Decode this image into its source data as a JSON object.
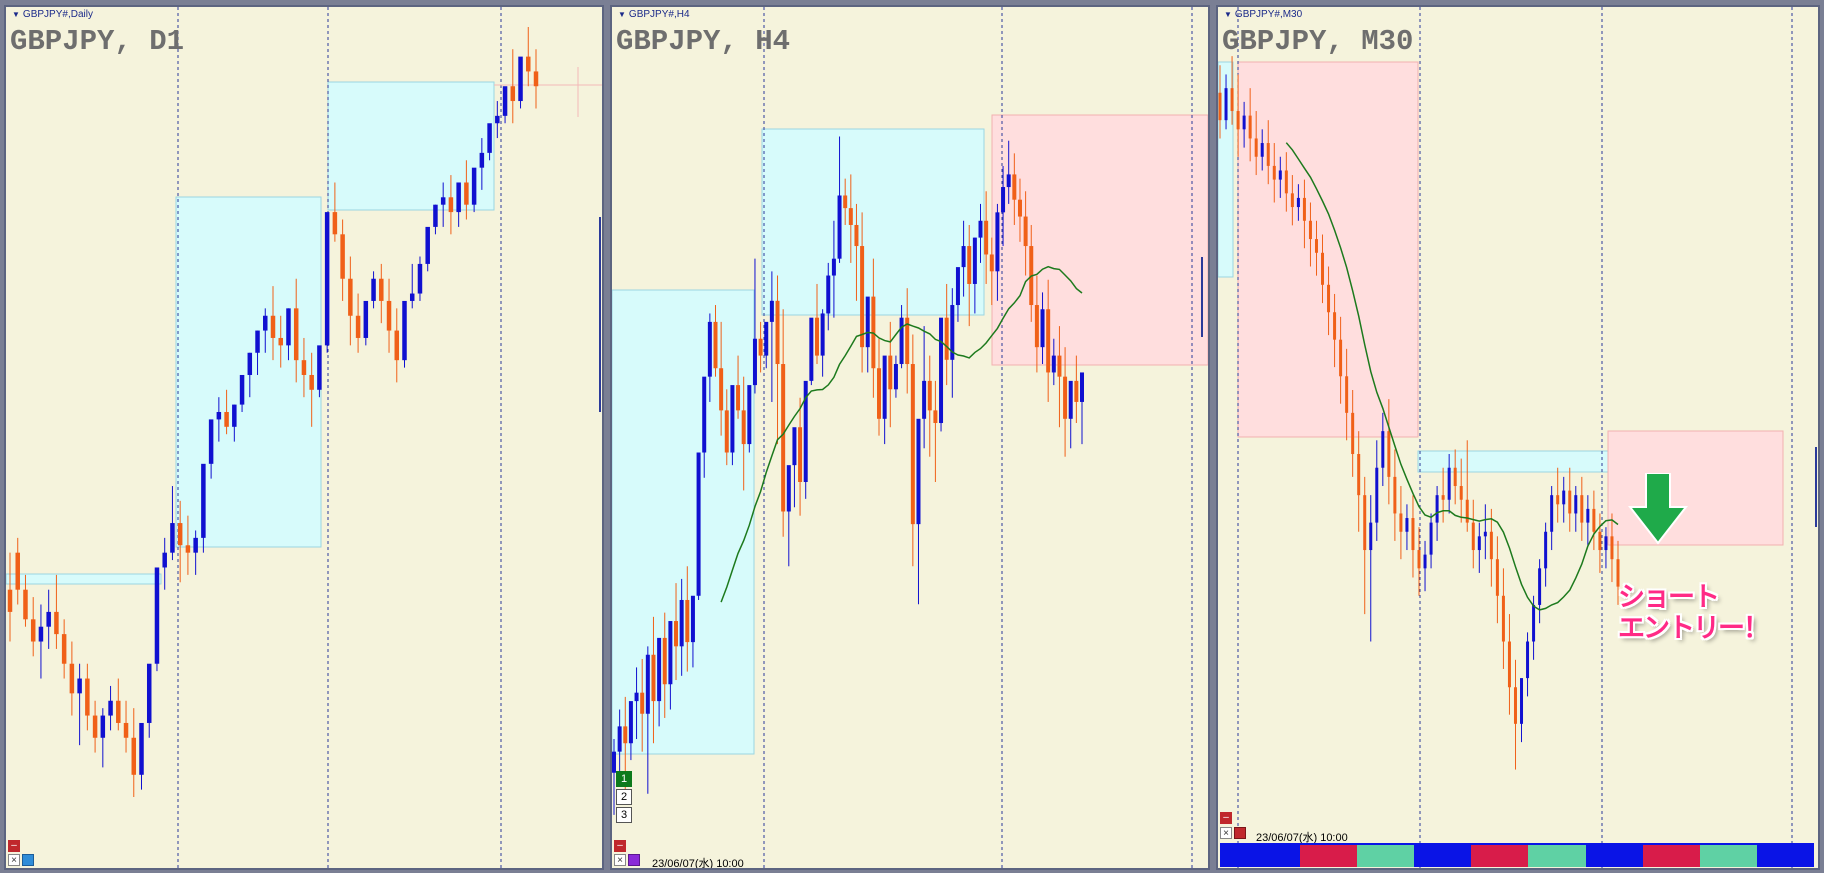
{
  "colors": {
    "background": "#f5f3dc",
    "bull": "#1010d0",
    "bear": "#f06018",
    "demand_zone": "#d7fbfb",
    "supply_zone": "#ffdede",
    "ma_line": "#1d7a1d",
    "entry_arrow": "#1faa4a",
    "entry_text": "#ff2a86",
    "bar_blue": "#0a14e6",
    "bar_red": "#d81c4a",
    "bar_teal": "#5fd1a4"
  },
  "panels": [
    {
      "id": "d1",
      "small_title": "GBPJPY#,Daily",
      "big_title": "GBPJPY, D1",
      "icon": "chart-menu-triangle"
    },
    {
      "id": "h4",
      "small_title": "GBPJPY#,H4",
      "big_title": "GBPJPY, H4",
      "icon": "chart-menu-triangle",
      "date_label": "23/06/07(水) 10:00",
      "pages": [
        "1",
        "2",
        "3"
      ],
      "active_page": "1"
    },
    {
      "id": "m30",
      "small_title": "GBPJPY#,M30",
      "big_title": "GBPJPY, M30",
      "icon": "chart-menu-triangle",
      "date_label": "23/06/07(水) 10:00",
      "entry_text_line1": "ショート",
      "entry_text_line2": "エントリー！",
      "strength_bar": [
        "blue",
        "blue",
        "red",
        "teal",
        "blue",
        "red",
        "teal",
        "blue",
        "red",
        "teal",
        "blue"
      ]
    }
  ],
  "controls": {
    "minimize_symbol": "–",
    "close_symbol": "×"
  },
  "price_series": {
    "d1": [
      [
        122.0,
        124.5,
        120.5,
        118.5
      ],
      [
        124.5,
        125.5,
        122.0,
        121.0
      ],
      [
        122.0,
        123.0,
        120.0,
        119.5
      ],
      [
        120.0,
        121.5,
        118.5,
        117.5
      ],
      [
        118.5,
        121.0,
        119.5,
        116.0
      ],
      [
        119.5,
        122.0,
        120.5,
        118.0
      ],
      [
        120.5,
        123.0,
        119.0,
        118.0
      ],
      [
        119.0,
        120.0,
        117.0,
        116.0
      ],
      [
        117.0,
        118.5,
        115.0,
        113.5
      ],
      [
        115.0,
        117.0,
        116.0,
        111.5
      ],
      [
        116.0,
        117.0,
        113.5,
        112.5
      ],
      [
        113.5,
        114.5,
        112.0,
        111.0
      ],
      [
        112.0,
        114.0,
        113.5,
        110.0
      ],
      [
        113.5,
        115.5,
        114.5,
        112.5
      ],
      [
        114.5,
        116.0,
        113.0,
        112.5
      ],
      [
        113.0,
        114.5,
        112.0,
        111.0
      ],
      [
        112.0,
        114.0,
        109.5,
        108.0
      ],
      [
        109.5,
        111.5,
        113.0,
        108.5
      ],
      [
        113.0,
        116.5,
        117.0,
        112.0
      ],
      [
        117.0,
        120.0,
        123.5,
        116.5
      ],
      [
        123.5,
        125.5,
        124.5,
        122.0
      ],
      [
        124.5,
        129.0,
        126.5,
        124.0
      ],
      [
        126.5,
        128.0,
        125.0,
        122.5
      ],
      [
        125.0,
        127.0,
        124.5,
        123.0
      ],
      [
        124.5,
        126.0,
        125.5,
        123.0
      ],
      [
        125.5,
        128.5,
        130.5,
        124.5
      ],
      [
        130.5,
        132.0,
        133.5,
        129.5
      ],
      [
        133.5,
        135.0,
        134.0,
        132.0
      ],
      [
        134.0,
        135.5,
        133.0,
        132.5
      ],
      [
        133.0,
        134.5,
        134.5,
        132.0
      ],
      [
        134.5,
        136.0,
        136.5,
        134.0
      ],
      [
        136.5,
        138.0,
        138.0,
        135.0
      ],
      [
        138.0,
        139.5,
        139.5,
        136.5
      ],
      [
        139.5,
        141.0,
        140.5,
        138.0
      ],
      [
        140.5,
        142.5,
        139.0,
        137.5
      ],
      [
        139.0,
        140.5,
        138.5,
        137.0
      ],
      [
        138.5,
        141.0,
        141.0,
        137.5
      ],
      [
        141.0,
        143.0,
        137.5,
        136.0
      ],
      [
        137.5,
        139.0,
        136.5,
        135.0
      ],
      [
        136.5,
        138.0,
        135.5,
        133.0
      ],
      [
        135.5,
        137.5,
        138.5,
        135.0
      ],
      [
        138.5,
        142.0,
        147.5,
        138.0
      ],
      [
        147.5,
        149.5,
        146.0,
        145.5
      ],
      [
        146.0,
        147.0,
        143.0,
        141.5
      ],
      [
        143.0,
        144.5,
        140.5,
        138.5
      ],
      [
        140.5,
        142.0,
        139.0,
        138.0
      ],
      [
        139.0,
        141.0,
        141.5,
        138.5
      ],
      [
        141.5,
        143.5,
        143.0,
        141.0
      ],
      [
        143.0,
        144.0,
        141.5,
        140.0
      ],
      [
        141.5,
        143.0,
        139.5,
        138.0
      ],
      [
        139.5,
        141.0,
        137.5,
        136.0
      ],
      [
        137.5,
        139.0,
        141.5,
        137.0
      ],
      [
        141.5,
        144.0,
        142.0,
        141.0
      ],
      [
        142.0,
        144.5,
        144.0,
        141.5
      ],
      [
        144.0,
        146.0,
        146.5,
        143.5
      ],
      [
        146.5,
        148.0,
        148.0,
        146.0
      ],
      [
        148.0,
        149.5,
        148.5,
        146.5
      ],
      [
        148.5,
        150.0,
        147.5,
        146.0
      ],
      [
        147.5,
        148.5,
        149.5,
        146.5
      ],
      [
        149.5,
        151.0,
        148.0,
        147.0
      ],
      [
        148.0,
        149.5,
        150.5,
        147.5
      ],
      [
        150.5,
        152.5,
        151.5,
        149.0
      ],
      [
        151.5,
        153.0,
        153.5,
        151.0
      ],
      [
        153.5,
        155.0,
        154.0,
        152.5
      ],
      [
        154.0,
        155.5,
        156.0,
        153.5
      ],
      [
        156.0,
        158.5,
        155.0,
        153.5
      ],
      [
        155.0,
        157.0,
        158.0,
        154.5
      ],
      [
        158.0,
        160.0,
        157.0,
        156.0
      ],
      [
        157.0,
        158.5,
        156.0,
        154.5
      ]
    ],
    "h4": [
      [
        166.5,
        167.3,
        167.0,
        165.5
      ],
      [
        167.0,
        168.0,
        167.6,
        166.2
      ],
      [
        167.6,
        168.3,
        167.2,
        166.0
      ],
      [
        167.2,
        168.0,
        168.2,
        166.8
      ],
      [
        168.2,
        169.0,
        168.4,
        167.3
      ],
      [
        168.4,
        169.2,
        167.9,
        167.0
      ],
      [
        167.9,
        169.5,
        169.3,
        166.0
      ],
      [
        169.3,
        170.2,
        168.2,
        167.2
      ],
      [
        168.2,
        169.0,
        169.7,
        167.6
      ],
      [
        169.7,
        170.3,
        168.6,
        167.8
      ],
      [
        168.6,
        169.8,
        170.1,
        168.0
      ],
      [
        170.1,
        171.0,
        169.5,
        168.7
      ],
      [
        169.5,
        171.1,
        170.6,
        168.8
      ],
      [
        170.6,
        171.4,
        169.6,
        168.9
      ],
      [
        169.6,
        170.5,
        170.7,
        169.0
      ],
      [
        170.7,
        172.5,
        174.1,
        170.6
      ],
      [
        174.1,
        175.5,
        175.9,
        173.5
      ],
      [
        175.9,
        177.4,
        177.2,
        175.3
      ],
      [
        177.2,
        177.6,
        176.1,
        175.9
      ],
      [
        176.1,
        177.2,
        175.1,
        174.5
      ],
      [
        175.1,
        175.6,
        174.1,
        173.8
      ],
      [
        174.1,
        175.1,
        175.7,
        173.8
      ],
      [
        175.7,
        176.4,
        175.1,
        174.9
      ],
      [
        175.1,
        175.9,
        174.3,
        173.2
      ],
      [
        174.3,
        174.7,
        175.7,
        174.1
      ],
      [
        175.7,
        178.7,
        176.8,
        175.5
      ],
      [
        176.8,
        177.2,
        176.4,
        176.0
      ],
      [
        176.4,
        176.9,
        177.2,
        176.1
      ],
      [
        177.2,
        178.4,
        177.7,
        175.3
      ],
      [
        177.7,
        178.3,
        176.2,
        174.3
      ],
      [
        176.2,
        177.5,
        172.7,
        172.1
      ],
      [
        172.7,
        173.2,
        173.8,
        171.4
      ],
      [
        173.8,
        174.2,
        174.7,
        172.8
      ],
      [
        174.7,
        175.4,
        173.4,
        172.6
      ],
      [
        173.4,
        174.2,
        175.8,
        173.0
      ],
      [
        175.8,
        176.4,
        177.3,
        175.7
      ],
      [
        177.3,
        178.1,
        176.4,
        176.2
      ],
      [
        176.4,
        177.5,
        177.4,
        175.9
      ],
      [
        177.4,
        178.6,
        178.3,
        177.0
      ],
      [
        178.3,
        179.6,
        178.7,
        177.3
      ],
      [
        178.7,
        181.6,
        180.2,
        178.6
      ],
      [
        180.2,
        180.6,
        179.9,
        179.5
      ],
      [
        179.9,
        180.7,
        179.5,
        178.6
      ],
      [
        179.5,
        180.0,
        179.0,
        177.7
      ],
      [
        179.0,
        179.8,
        176.6,
        176.0
      ],
      [
        176.6,
        177.2,
        177.8,
        176.0
      ],
      [
        177.8,
        178.7,
        176.1,
        175.4
      ],
      [
        176.1,
        176.8,
        174.9,
        174.5
      ],
      [
        174.9,
        175.7,
        176.4,
        174.3
      ],
      [
        176.4,
        177.2,
        175.6,
        174.7
      ],
      [
        175.6,
        176.4,
        176.2,
        175.4
      ],
      [
        176.2,
        177.6,
        177.3,
        176.1
      ],
      [
        177.3,
        178.0,
        176.2,
        175.5
      ],
      [
        176.2,
        176.9,
        172.4,
        171.4
      ],
      [
        172.4,
        174.0,
        174.9,
        170.5
      ],
      [
        174.9,
        177.1,
        175.8,
        174.2
      ],
      [
        175.8,
        176.4,
        175.1,
        174.0
      ],
      [
        175.1,
        175.8,
        174.8,
        173.4
      ],
      [
        174.8,
        176.2,
        177.3,
        174.6
      ],
      [
        177.3,
        178.1,
        176.3,
        175.7
      ],
      [
        176.3,
        178.0,
        177.6,
        175.4
      ],
      [
        177.6,
        178.2,
        178.5,
        177.2
      ],
      [
        178.5,
        179.6,
        179.0,
        177.8
      ],
      [
        179.0,
        179.5,
        178.1,
        177.1
      ],
      [
        178.1,
        179.2,
        179.2,
        177.4
      ],
      [
        179.2,
        180.0,
        179.6,
        178.6
      ],
      [
        179.6,
        180.3,
        178.8,
        178.1
      ],
      [
        178.8,
        179.2,
        178.4,
        177.6
      ],
      [
        178.4,
        180.0,
        179.8,
        177.7
      ],
      [
        179.8,
        180.9,
        180.4,
        179.0
      ],
      [
        180.4,
        181.5,
        180.7,
        180.0
      ],
      [
        180.7,
        181.2,
        180.1,
        179.5
      ],
      [
        180.1,
        180.6,
        179.7,
        179.1
      ],
      [
        179.7,
        180.3,
        179.0,
        178.3
      ],
      [
        179.0,
        179.5,
        177.6,
        177.2
      ],
      [
        177.6,
        178.3,
        176.6,
        176.0
      ],
      [
        176.6,
        177.9,
        177.5,
        176.2
      ],
      [
        177.5,
        178.2,
        176.0,
        175.3
      ],
      [
        176.0,
        176.8,
        176.4,
        175.7
      ],
      [
        176.4,
        177.1,
        175.9,
        174.7
      ],
      [
        175.9,
        176.6,
        174.9,
        174.0
      ],
      [
        174.9,
        175.5,
        175.8,
        174.2
      ],
      [
        175.8,
        176.4,
        175.3,
        174.8
      ],
      [
        175.3,
        176.0,
        176.0,
        174.3
      ]
    ],
    "m30": [
      [
        181.3,
        181.6,
        181.0,
        180.8
      ],
      [
        181.0,
        181.5,
        181.35,
        180.9
      ],
      [
        181.35,
        181.7,
        181.1,
        180.95
      ],
      [
        181.1,
        181.5,
        180.9,
        180.6
      ],
      [
        180.9,
        181.2,
        181.05,
        180.7
      ],
      [
        181.05,
        181.35,
        180.8,
        180.55
      ],
      [
        180.8,
        181.1,
        180.6,
        180.4
      ],
      [
        180.6,
        180.9,
        180.75,
        180.45
      ],
      [
        180.75,
        181.0,
        180.5,
        180.3
      ],
      [
        180.5,
        180.75,
        180.35,
        180.1
      ],
      [
        180.35,
        180.6,
        180.45,
        180.15
      ],
      [
        180.45,
        180.65,
        180.2,
        180.0
      ],
      [
        180.2,
        180.4,
        180.05,
        179.85
      ],
      [
        180.05,
        180.3,
        180.15,
        179.9
      ],
      [
        180.15,
        180.35,
        179.9,
        179.6
      ],
      [
        179.9,
        180.1,
        179.7,
        179.4
      ],
      [
        179.7,
        179.9,
        179.55,
        179.3
      ],
      [
        179.55,
        179.75,
        179.2,
        179.0
      ],
      [
        179.2,
        179.4,
        178.9,
        178.65
      ],
      [
        178.9,
        179.1,
        178.6,
        178.3
      ],
      [
        178.6,
        178.85,
        178.2,
        177.9
      ],
      [
        178.2,
        178.5,
        177.8,
        177.5
      ],
      [
        177.8,
        178.05,
        177.35,
        177.1
      ],
      [
        177.35,
        177.6,
        176.9,
        176.5
      ],
      [
        176.9,
        177.1,
        176.3,
        175.6
      ],
      [
        176.3,
        176.9,
        176.6,
        175.3
      ],
      [
        176.6,
        177.5,
        177.2,
        176.4
      ],
      [
        177.2,
        177.8,
        177.6,
        177.0
      ],
      [
        177.6,
        177.95,
        177.1,
        176.8
      ],
      [
        177.1,
        177.4,
        176.7,
        176.4
      ],
      [
        176.7,
        177.0,
        176.5,
        176.2
      ],
      [
        176.5,
        176.8,
        176.65,
        176.3
      ],
      [
        176.65,
        176.9,
        176.3,
        176.0
      ],
      [
        176.3,
        176.55,
        176.1,
        175.8
      ],
      [
        176.1,
        176.4,
        176.25,
        175.85
      ],
      [
        176.25,
        176.7,
        176.6,
        176.1
      ],
      [
        176.6,
        177.0,
        176.9,
        176.4
      ],
      [
        176.9,
        177.2,
        176.85,
        176.6
      ],
      [
        176.85,
        177.35,
        177.2,
        176.7
      ],
      [
        177.2,
        177.4,
        177.0,
        176.8
      ],
      [
        177.0,
        177.3,
        176.85,
        176.6
      ],
      [
        176.85,
        177.5,
        176.6,
        176.5
      ],
      [
        176.6,
        176.85,
        176.3,
        176.1
      ],
      [
        176.3,
        176.6,
        176.45,
        176.05
      ],
      [
        176.45,
        176.8,
        176.5,
        176.2
      ],
      [
        176.5,
        176.75,
        176.2,
        175.9
      ],
      [
        176.2,
        176.45,
        175.8,
        175.5
      ],
      [
        175.8,
        176.1,
        175.3,
        175.0
      ],
      [
        175.3,
        175.6,
        174.8,
        174.5
      ],
      [
        174.8,
        175.1,
        174.4,
        173.9
      ],
      [
        174.4,
        174.7,
        174.9,
        174.2
      ],
      [
        174.9,
        175.4,
        175.3,
        174.7
      ],
      [
        175.3,
        175.8,
        175.7,
        175.1
      ],
      [
        175.7,
        176.2,
        176.1,
        175.5
      ],
      [
        176.1,
        176.6,
        176.5,
        175.9
      ],
      [
        176.5,
        177.0,
        176.9,
        176.3
      ],
      [
        176.9,
        177.2,
        176.8,
        176.6
      ],
      [
        176.8,
        177.1,
        176.95,
        176.6
      ],
      [
        176.95,
        177.2,
        176.7,
        176.5
      ],
      [
        176.7,
        177.0,
        176.9,
        176.5
      ],
      [
        176.9,
        177.1,
        176.6,
        176.4
      ],
      [
        176.6,
        176.9,
        176.75,
        176.35
      ],
      [
        176.75,
        176.95,
        176.5,
        176.3
      ],
      [
        176.5,
        176.7,
        176.3,
        176.05
      ],
      [
        176.3,
        176.55,
        176.45,
        176.1
      ],
      [
        176.45,
        176.7,
        176.2,
        175.95
      ],
      [
        176.2,
        176.4,
        175.9,
        175.7
      ]
    ]
  }
}
